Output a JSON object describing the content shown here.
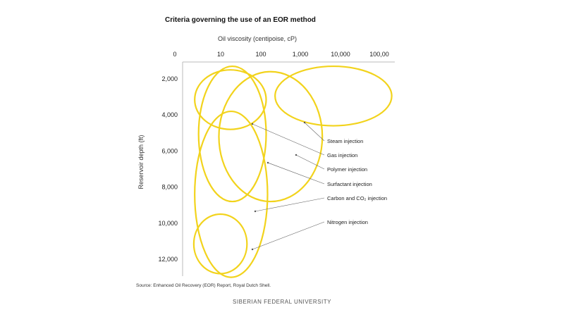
{
  "chart_data": {
    "type": "scatter",
    "title": "Criteria governing the use of an EOR method",
    "xlabel": "Oil viscosity (centipoise, cP)",
    "ylabel": "Reservoir depth (ft)",
    "x_scale": "log",
    "y_reversed": true,
    "x_ticks": [
      "0",
      "10",
      "100",
      "1,000",
      "10,000",
      "100,00"
    ],
    "y_ticks": [
      "2,000",
      "4,000",
      "6,000",
      "8,000",
      "10,000",
      "12,000"
    ],
    "y_tick_values": [
      2000,
      4000,
      6000,
      8000,
      10000,
      12000
    ],
    "series_color": "#f2d31c",
    "series": [
      {
        "name": "Steam injection",
        "viscosity_range_cP": [
          200,
          160000
        ],
        "depth_range_ft": [
          1300,
          4600
        ]
      },
      {
        "name": "Gas injection",
        "viscosity_range_cP": [
          2,
          120
        ],
        "depth_range_ft": [
          1500,
          4800
        ]
      },
      {
        "name": "Polymer injection",
        "viscosity_range_cP": [
          8,
          3000
        ],
        "depth_range_ft": [
          1600,
          8800
        ]
      },
      {
        "name": "Surfactant injection",
        "viscosity_range_cP": [
          2.5,
          120
        ],
        "depth_range_ft": [
          1300,
          8800
        ]
      },
      {
        "name": "Carbon and CO₂ injection",
        "viscosity_range_cP": [
          2,
          130
        ],
        "depth_range_ft": [
          3800,
          13000
        ]
      },
      {
        "name": "Nitrogen injection",
        "viscosity_range_cP": [
          1.9,
          40
        ],
        "depth_range_ft": [
          9500,
          12800
        ]
      }
    ],
    "grid": false,
    "legend": "callout labels right"
  },
  "source": "Source: Enhanced Oil Recovery (EOR) Report, Royal Dutch Shell.",
  "footer": "SIBERIAN FEDERAL UNIVERSITY"
}
